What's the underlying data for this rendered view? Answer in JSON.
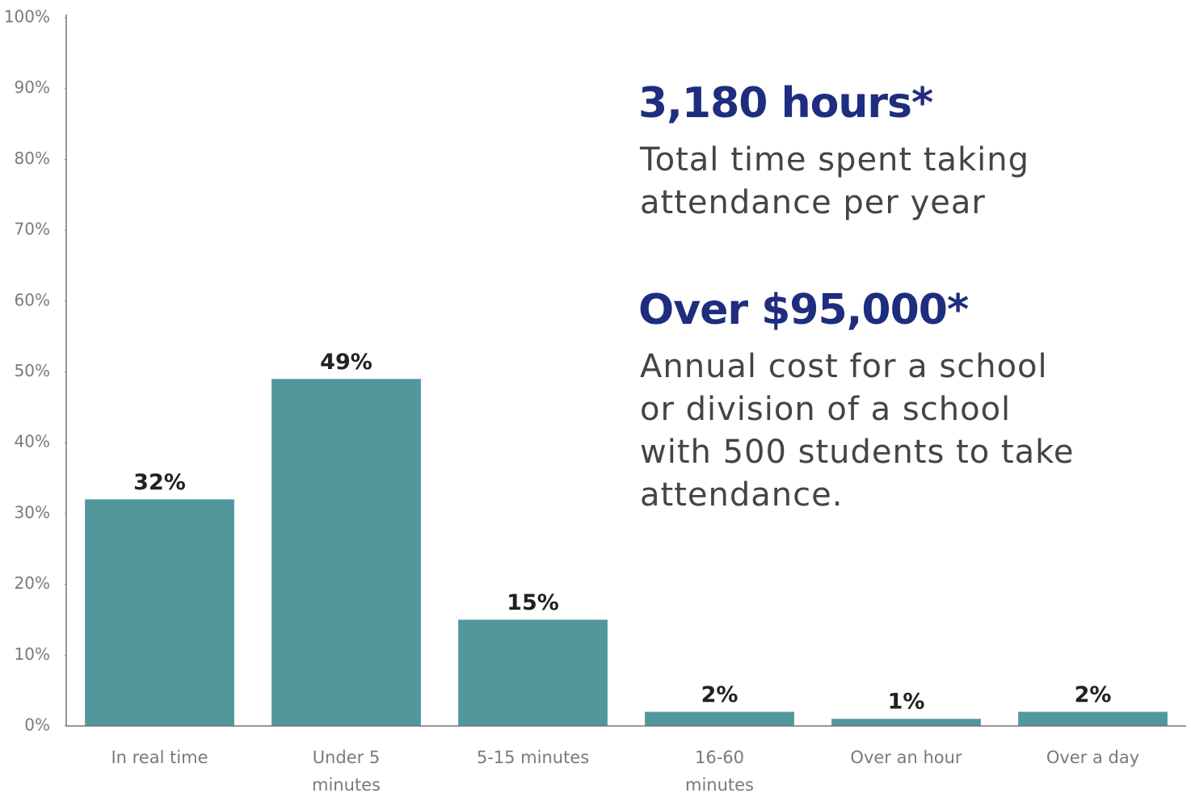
{
  "chart_data": {
    "type": "bar",
    "categories": [
      "In real time",
      "Under 5\nminutes",
      "5-15 minutes",
      "16-60\nminutes",
      "Over an hour",
      "Over a day"
    ],
    "values": [
      32,
      49,
      15,
      2,
      1,
      2
    ],
    "value_labels": [
      "32%",
      "49%",
      "15%",
      "2%",
      "1%",
      "2%"
    ],
    "color": "#52979c",
    "ylim": [
      0,
      100
    ],
    "yticks": [
      {
        "value": 0,
        "label": "0%"
      },
      {
        "value": 10,
        "label": "10%"
      },
      {
        "value": 20,
        "label": "20%"
      },
      {
        "value": 30,
        "label": "30%"
      },
      {
        "value": 40,
        "label": "40%"
      },
      {
        "value": 50,
        "label": "50%"
      },
      {
        "value": 60,
        "label": "60%"
      },
      {
        "value": 70,
        "label": "70%"
      },
      {
        "value": 80,
        "label": "80%"
      },
      {
        "value": 90,
        "label": "90%"
      },
      {
        "value": 100,
        "label": "100%"
      }
    ],
    "grid": false,
    "annotations": [
      {
        "heading": "3,180 hours*",
        "text": "Total time spent taking\nattendance per year"
      },
      {
        "heading": "Over $95,000*",
        "text": "Annual cost for a school\nor division of a school\nwith 500 students to take\nattendance."
      }
    ]
  }
}
